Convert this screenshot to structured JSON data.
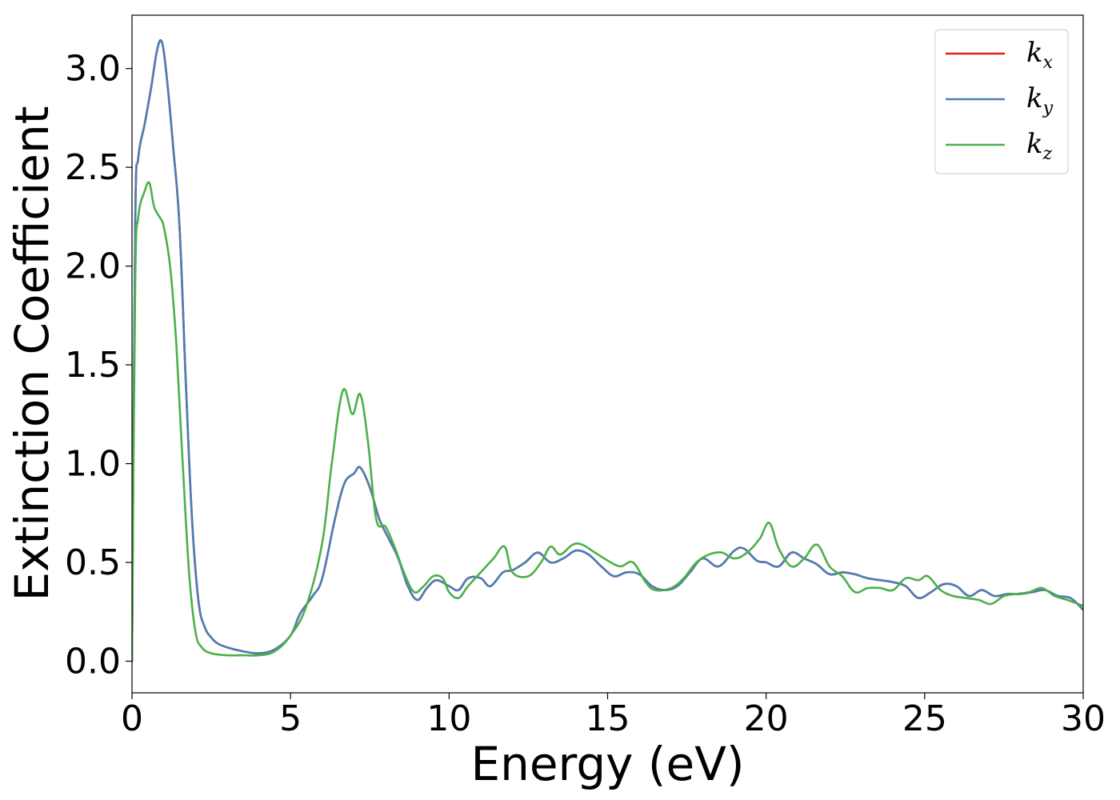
{
  "chart_data": {
    "type": "line",
    "xlabel": "Energy (eV)",
    "ylabel": "Extinction Coefficient",
    "xlim": [
      0,
      30
    ],
    "ylim": [
      -0.16,
      3.27
    ],
    "xticks": [
      0,
      5,
      10,
      15,
      20,
      25,
      30
    ],
    "xtick_labels": [
      "0",
      "5",
      "10",
      "15",
      "20",
      "25",
      "30"
    ],
    "yticks": [
      0.0,
      0.5,
      1.0,
      1.5,
      2.0,
      2.5,
      3.0
    ],
    "ytick_labels": [
      "0.0",
      "0.5",
      "1.0",
      "1.5",
      "2.0",
      "2.5",
      "3.0"
    ],
    "grid": false,
    "legend_position": "top-right",
    "series": [
      {
        "name": "k",
        "subscript": "x",
        "color": "#e41a1c",
        "x": [
          0,
          0.1,
          0.2,
          0.4,
          0.6,
          0.8,
          0.95,
          1.1,
          1.3,
          1.5,
          1.7,
          1.9,
          2.1,
          2.3,
          2.5,
          2.7,
          3.0,
          3.5,
          4.0,
          4.5,
          5.0,
          5.3,
          5.7,
          6.0,
          6.4,
          6.7,
          7.0,
          7.2,
          7.5,
          7.8,
          8.1,
          8.4,
          8.7,
          9.0,
          9.3,
          9.6,
          10.0,
          10.3,
          10.6,
          11.0,
          11.3,
          11.7,
          12.0,
          12.4,
          12.8,
          13.2,
          13.6,
          14.0,
          14.4,
          14.8,
          15.2,
          15.6,
          16.0,
          16.4,
          16.8,
          17.2,
          17.6,
          18.0,
          18.5,
          19.0,
          19.3,
          19.7,
          20.0,
          20.4,
          20.8,
          21.2,
          21.6,
          22.0,
          22.4,
          22.8,
          23.2,
          23.6,
          24.0,
          24.4,
          24.8,
          25.2,
          25.6,
          26.0,
          26.4,
          26.8,
          27.2,
          27.6,
          28.0,
          28.4,
          28.8,
          29.2,
          29.6,
          30.0
        ],
        "y": [
          0.0,
          2.2,
          2.55,
          2.72,
          2.9,
          3.1,
          3.13,
          2.95,
          2.6,
          2.2,
          1.4,
          0.7,
          0.3,
          0.17,
          0.12,
          0.09,
          0.07,
          0.05,
          0.04,
          0.06,
          0.13,
          0.24,
          0.33,
          0.42,
          0.72,
          0.9,
          0.95,
          0.98,
          0.88,
          0.72,
          0.62,
          0.52,
          0.38,
          0.31,
          0.37,
          0.41,
          0.38,
          0.36,
          0.42,
          0.42,
          0.38,
          0.45,
          0.46,
          0.5,
          0.55,
          0.5,
          0.52,
          0.56,
          0.54,
          0.48,
          0.43,
          0.45,
          0.44,
          0.38,
          0.36,
          0.38,
          0.45,
          0.52,
          0.48,
          0.56,
          0.57,
          0.51,
          0.5,
          0.48,
          0.55,
          0.52,
          0.49,
          0.44,
          0.45,
          0.44,
          0.42,
          0.41,
          0.4,
          0.38,
          0.32,
          0.35,
          0.39,
          0.38,
          0.33,
          0.36,
          0.33,
          0.34,
          0.34,
          0.35,
          0.36,
          0.33,
          0.32,
          0.26
        ]
      },
      {
        "name": "k",
        "subscript": "y",
        "color": "#4a7fb5",
        "x": [
          0,
          0.1,
          0.2,
          0.4,
          0.6,
          0.8,
          0.95,
          1.1,
          1.3,
          1.5,
          1.7,
          1.9,
          2.1,
          2.3,
          2.5,
          2.7,
          3.0,
          3.5,
          4.0,
          4.5,
          5.0,
          5.3,
          5.7,
          6.0,
          6.4,
          6.7,
          7.0,
          7.2,
          7.5,
          7.8,
          8.1,
          8.4,
          8.7,
          9.0,
          9.3,
          9.6,
          10.0,
          10.3,
          10.6,
          11.0,
          11.3,
          11.7,
          12.0,
          12.4,
          12.8,
          13.2,
          13.6,
          14.0,
          14.4,
          14.8,
          15.2,
          15.6,
          16.0,
          16.4,
          16.8,
          17.2,
          17.6,
          18.0,
          18.5,
          19.0,
          19.3,
          19.7,
          20.0,
          20.4,
          20.8,
          21.2,
          21.6,
          22.0,
          22.4,
          22.8,
          23.2,
          23.6,
          24.0,
          24.4,
          24.8,
          25.2,
          25.6,
          26.0,
          26.4,
          26.8,
          27.2,
          27.6,
          28.0,
          28.4,
          28.8,
          29.2,
          29.6,
          30.0
        ],
        "y": [
          0.0,
          2.2,
          2.55,
          2.72,
          2.9,
          3.1,
          3.13,
          2.95,
          2.6,
          2.2,
          1.4,
          0.7,
          0.3,
          0.17,
          0.12,
          0.09,
          0.07,
          0.05,
          0.04,
          0.06,
          0.13,
          0.24,
          0.33,
          0.42,
          0.72,
          0.9,
          0.95,
          0.98,
          0.88,
          0.72,
          0.62,
          0.52,
          0.38,
          0.31,
          0.37,
          0.41,
          0.38,
          0.36,
          0.42,
          0.42,
          0.38,
          0.45,
          0.46,
          0.5,
          0.55,
          0.5,
          0.52,
          0.56,
          0.54,
          0.48,
          0.43,
          0.45,
          0.44,
          0.38,
          0.36,
          0.38,
          0.45,
          0.52,
          0.48,
          0.56,
          0.57,
          0.51,
          0.5,
          0.48,
          0.55,
          0.52,
          0.49,
          0.44,
          0.45,
          0.44,
          0.42,
          0.41,
          0.4,
          0.38,
          0.32,
          0.35,
          0.39,
          0.38,
          0.33,
          0.36,
          0.33,
          0.34,
          0.34,
          0.35,
          0.36,
          0.33,
          0.32,
          0.26
        ]
      },
      {
        "name": "k",
        "subscript": "z",
        "color": "#4daf4a",
        "x": [
          0,
          0.1,
          0.2,
          0.4,
          0.55,
          0.7,
          0.9,
          1.0,
          1.2,
          1.4,
          1.6,
          1.8,
          2.0,
          2.2,
          2.5,
          3.0,
          3.5,
          4.0,
          4.5,
          5.0,
          5.5,
          6.0,
          6.3,
          6.65,
          6.95,
          7.2,
          7.45,
          7.7,
          8.0,
          8.3,
          8.6,
          8.9,
          9.2,
          9.5,
          9.8,
          10.0,
          10.3,
          10.6,
          11.0,
          11.4,
          11.75,
          12.0,
          12.5,
          12.9,
          13.2,
          13.5,
          13.9,
          14.2,
          14.6,
          15.0,
          15.4,
          15.8,
          16.2,
          16.5,
          17.0,
          17.4,
          17.8,
          18.2,
          18.6,
          19.0,
          19.4,
          19.8,
          20.1,
          20.4,
          20.8,
          21.2,
          21.6,
          22.0,
          22.4,
          22.8,
          23.2,
          23.6,
          24.0,
          24.4,
          24.8,
          25.1,
          25.5,
          25.9,
          26.3,
          26.7,
          27.1,
          27.5,
          27.9,
          28.3,
          28.7,
          29.1,
          29.5,
          30.0
        ],
        "y": [
          0.0,
          1.9,
          2.25,
          2.38,
          2.42,
          2.3,
          2.24,
          2.2,
          2.0,
          1.6,
          1.0,
          0.45,
          0.15,
          0.07,
          0.04,
          0.03,
          0.03,
          0.03,
          0.05,
          0.13,
          0.28,
          0.6,
          1.0,
          1.37,
          1.25,
          1.35,
          1.1,
          0.72,
          0.68,
          0.57,
          0.44,
          0.35,
          0.38,
          0.43,
          0.42,
          0.35,
          0.32,
          0.38,
          0.45,
          0.52,
          0.58,
          0.45,
          0.43,
          0.5,
          0.58,
          0.54,
          0.59,
          0.59,
          0.55,
          0.51,
          0.48,
          0.5,
          0.4,
          0.36,
          0.37,
          0.42,
          0.5,
          0.54,
          0.55,
          0.52,
          0.55,
          0.62,
          0.7,
          0.57,
          0.48,
          0.52,
          0.59,
          0.48,
          0.43,
          0.35,
          0.37,
          0.37,
          0.36,
          0.42,
          0.41,
          0.43,
          0.36,
          0.33,
          0.32,
          0.31,
          0.29,
          0.33,
          0.34,
          0.35,
          0.37,
          0.33,
          0.31,
          0.28
        ]
      }
    ]
  }
}
